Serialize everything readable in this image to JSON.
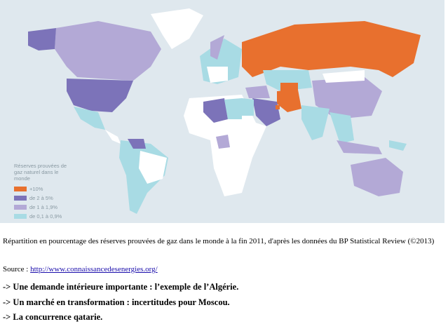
{
  "map": {
    "legend": {
      "title": "Réserves prouvées de gaz naturel dans le monde",
      "items": [
        {
          "label": "+10%",
          "color": "#e8702e"
        },
        {
          "label": "de 2 à 5%",
          "color": "#7c73b9"
        },
        {
          "label": "de 1 à  1,9%",
          "color": "#b3a9d6"
        },
        {
          "label": "de 0,1 à 0,9%",
          "color": "#a8dbe4"
        }
      ]
    }
  },
  "caption": "Répartition en pourcentage des réserves prouvées de gaz dans le monde à la fin 2011, d'après les données du BP Statistical Review (©2013)",
  "source": {
    "label": "Source : ",
    "link": "http://www.connaissancedesenergies.org/"
  },
  "points": [
    "-> Une demande intérieure importante : l’exemple de l’Algérie.",
    "-> Un marché en transformation : incertitudes pour Moscou.",
    "-> La concurrence qatarie."
  ]
}
